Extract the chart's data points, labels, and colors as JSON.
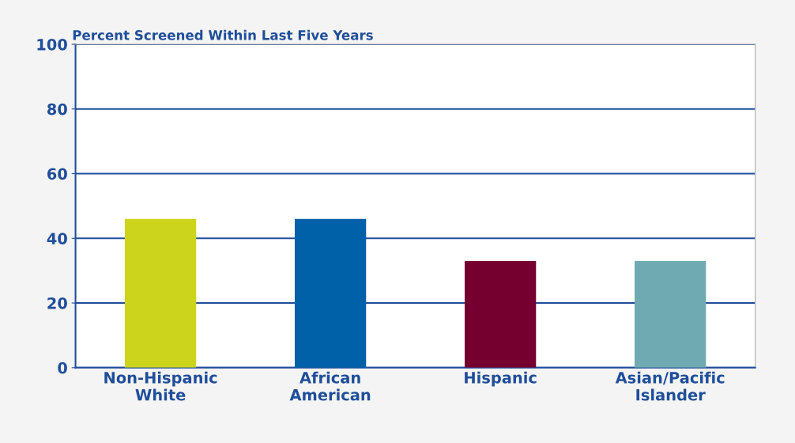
{
  "chart_data": {
    "type": "bar",
    "title": "Percent Screened Within Last Five Years",
    "categories": [
      "Non-Hispanic\nWhite",
      "African\nAmerican",
      "Hispanic",
      "Asian/Pacific\nIslander"
    ],
    "values": [
      46,
      46,
      33,
      33
    ],
    "colors": [
      "#cdd41c",
      "#0060a8",
      "#750030",
      "#6faab2"
    ],
    "ylim": [
      0,
      100
    ],
    "yticks": [
      0,
      20,
      40,
      60,
      80,
      100
    ],
    "grid": "y",
    "legend": false
  }
}
